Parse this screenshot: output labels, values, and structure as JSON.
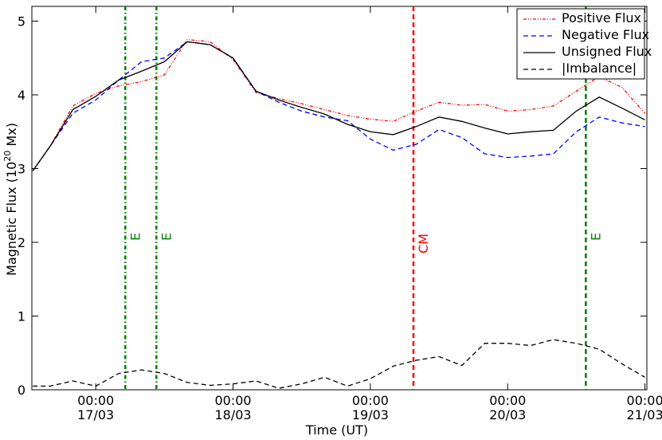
{
  "chart_data": {
    "type": "line",
    "xlabel": "Time (UT)",
    "ylabel": [
      "Magnetic Flux (10",
      "20",
      " Mx)"
    ],
    "x": [
      "16/03 13:00",
      "16/03 16:00",
      "16/03 20:00",
      "17/03 00:00",
      "17/03 04:00",
      "17/03 08:00",
      "17/03 12:00",
      "17/03 16:00",
      "17/03 20:00",
      "18/03 00:00",
      "18/03 04:00",
      "18/03 08:00",
      "18/03 12:00",
      "18/03 16:00",
      "18/03 20:00",
      "19/03 00:00",
      "19/03 04:00",
      "19/03 08:00",
      "19/03 12:00",
      "19/03 16:00",
      "19/03 20:00",
      "20/03 00:00",
      "20/03 04:00",
      "20/03 08:00",
      "20/03 12:00",
      "20/03 16:00",
      "20/03 20:00",
      "21/03 00:00"
    ],
    "series": [
      {
        "name": "Positive Flux",
        "color": "#ff0000",
        "style": "dashdotdot",
        "values": [
          2.97,
          3.3,
          3.85,
          4.02,
          4.12,
          4.18,
          4.27,
          4.75,
          4.72,
          4.48,
          4.03,
          3.95,
          3.88,
          3.8,
          3.72,
          3.67,
          3.64,
          3.78,
          3.9,
          3.86,
          3.87,
          3.78,
          3.8,
          3.85,
          4.05,
          4.25,
          4.1,
          3.75
        ]
      },
      {
        "name": "Negative Flux",
        "color": "#0000ff",
        "style": "dashed",
        "values": [
          2.97,
          3.3,
          3.75,
          3.93,
          4.2,
          4.45,
          4.5,
          4.72,
          4.68,
          4.5,
          4.05,
          3.9,
          3.78,
          3.7,
          3.65,
          3.4,
          3.25,
          3.33,
          3.53,
          3.42,
          3.2,
          3.15,
          3.17,
          3.2,
          3.5,
          3.7,
          3.62,
          3.57
        ]
      },
      {
        "name": "Unsigned Flux",
        "color": "#000000",
        "style": "solid",
        "values": [
          2.97,
          3.3,
          3.8,
          3.98,
          4.2,
          4.32,
          4.45,
          4.72,
          4.68,
          4.5,
          4.05,
          3.93,
          3.83,
          3.74,
          3.6,
          3.5,
          3.46,
          3.57,
          3.7,
          3.64,
          3.55,
          3.47,
          3.5,
          3.52,
          3.78,
          3.97,
          3.82,
          3.66
        ]
      },
      {
        "name": "|Imbalance|",
        "color": "#000000",
        "style": "dashed",
        "values": [
          0.05,
          0.05,
          0.12,
          0.05,
          0.22,
          0.27,
          0.22,
          0.1,
          0.06,
          0.08,
          0.12,
          0.02,
          0.08,
          0.17,
          0.05,
          0.15,
          0.32,
          0.4,
          0.45,
          0.33,
          0.63,
          0.63,
          0.6,
          0.68,
          0.63,
          0.55,
          0.35,
          0.17
        ]
      }
    ],
    "events": [
      {
        "x": "17/03 05:10",
        "label": "E",
        "color": "#008000",
        "style": "dashdot"
      },
      {
        "x": "17/03 10:36",
        "label": "E",
        "color": "#008000",
        "style": "dashdot"
      },
      {
        "x": "19/03 07:32",
        "label": "CM",
        "color": "#ff0000",
        "style": "dashed"
      },
      {
        "x": "20/03 13:40",
        "label": "E",
        "color": "#008000",
        "style": "dashed"
      }
    ],
    "xlim": [
      "16/03 12:50",
      "21/03 00:20"
    ],
    "xticks": [
      {
        "value": "17/03 00:00",
        "label": [
          "00:00",
          "17/03"
        ]
      },
      {
        "value": "18/03 00:00",
        "label": [
          "00:00",
          "18/03"
        ]
      },
      {
        "value": "19/03 00:00",
        "label": [
          "00:00",
          "19/03"
        ]
      },
      {
        "value": "20/03 00:00",
        "label": [
          "00:00",
          "20/03"
        ]
      },
      {
        "value": "21/03 00:00",
        "label": [
          "00:00",
          "21/03"
        ]
      }
    ],
    "ylim": [
      0,
      5.2
    ],
    "yticks": [
      0,
      1,
      2,
      3,
      4,
      5
    ],
    "legend": "upper right"
  }
}
